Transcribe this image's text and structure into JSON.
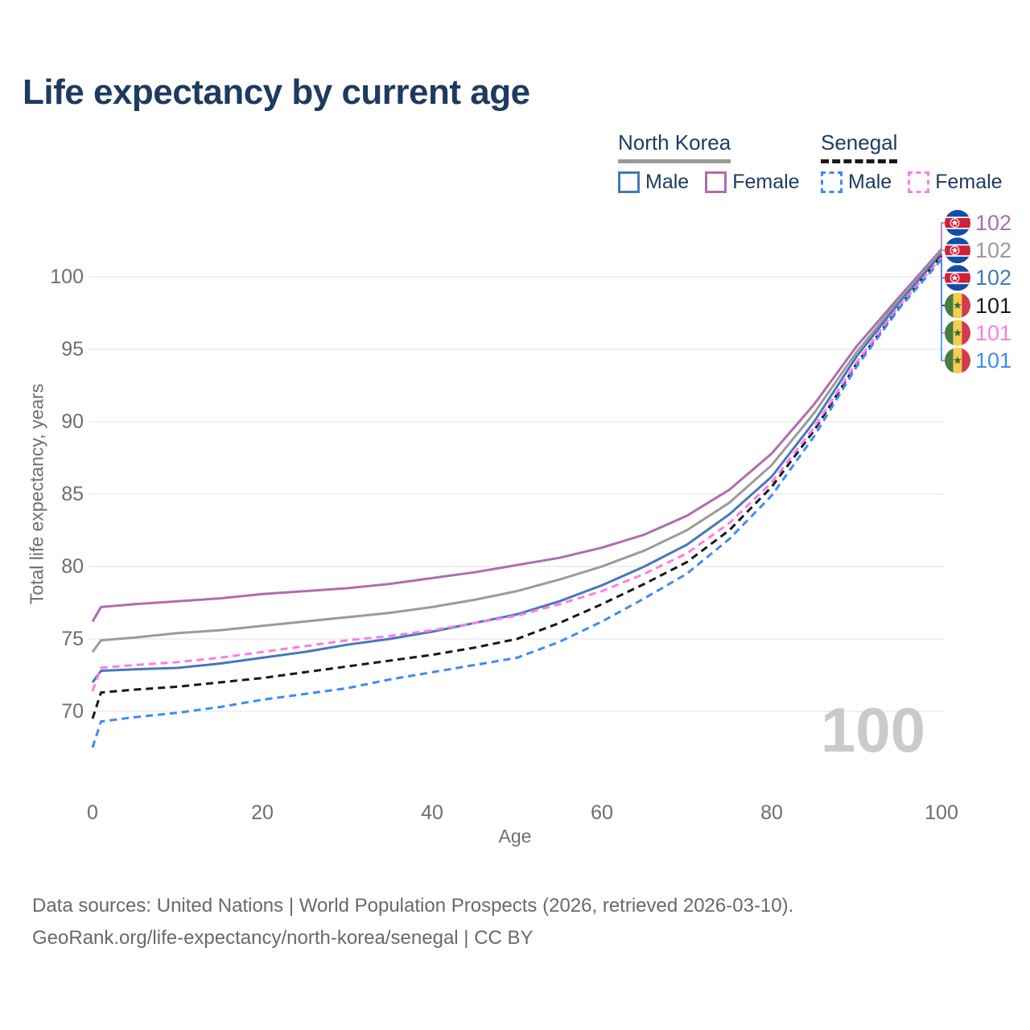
{
  "title": "Life expectancy by current age",
  "legend": {
    "groups": [
      {
        "country": "North Korea",
        "line_style": "solid",
        "items": [
          {
            "label": "Male",
            "color": "#4579ba"
          },
          {
            "label": "Female",
            "color": "#b06cad"
          }
        ]
      },
      {
        "country": "Senegal",
        "line_style": "dashed",
        "items": [
          {
            "label": "Male",
            "color": "#3e8bf4"
          },
          {
            "label": "Female",
            "color": "#fb7ce8"
          }
        ]
      }
    ]
  },
  "chart_data": {
    "type": "line",
    "title": "Life expectancy by current age",
    "xlabel": "Age",
    "ylabel": "Total life expectancy, years",
    "xlim": [
      0,
      100
    ],
    "ylim": [
      67,
      103
    ],
    "xticks": [
      0,
      20,
      40,
      60,
      80,
      100
    ],
    "yticks": [
      70,
      75,
      80,
      85,
      90,
      95,
      100
    ],
    "grid": "horizontal",
    "legend_position": "top-right",
    "x_ages": [
      0,
      1,
      5,
      10,
      15,
      20,
      25,
      30,
      35,
      40,
      45,
      50,
      55,
      60,
      65,
      70,
      75,
      80,
      85,
      90,
      95,
      100
    ],
    "series": [
      {
        "name": "North Korea Female",
        "country": "North Korea",
        "sex": "Female",
        "color": "#b06cad",
        "dashed": false,
        "values": [
          76.2,
          77.2,
          77.4,
          77.6,
          77.8,
          78.1,
          78.3,
          78.5,
          78.8,
          79.2,
          79.6,
          80.1,
          80.6,
          81.3,
          82.2,
          83.5,
          85.3,
          87.8,
          91.2,
          95.2,
          98.6,
          101.9
        ]
      },
      {
        "name": "North Korea Both sexes",
        "country": "North Korea",
        "sex": "Both",
        "color": "#9b9b9b",
        "dashed": false,
        "values": [
          74.1,
          74.9,
          75.1,
          75.4,
          75.6,
          75.9,
          76.2,
          76.5,
          76.8,
          77.2,
          77.7,
          78.3,
          79.1,
          80.0,
          81.1,
          82.5,
          84.4,
          87.0,
          90.6,
          94.8,
          98.4,
          101.75
        ]
      },
      {
        "name": "North Korea Male",
        "country": "North Korea",
        "sex": "Male",
        "color": "#4579ba",
        "dashed": false,
        "values": [
          72.0,
          72.8,
          72.9,
          73.0,
          73.3,
          73.7,
          74.1,
          74.6,
          75.0,
          75.5,
          76.1,
          76.7,
          77.6,
          78.7,
          80.0,
          81.5,
          83.6,
          86.2,
          90.0,
          94.5,
          98.2,
          101.6
        ]
      },
      {
        "name": "Senegal Both sexes",
        "country": "Senegal",
        "sex": "Both",
        "color": "#181818",
        "dashed": true,
        "values": [
          69.5,
          71.3,
          71.5,
          71.7,
          72.0,
          72.3,
          72.7,
          73.1,
          73.5,
          73.9,
          74.4,
          75.0,
          76.1,
          77.4,
          78.8,
          80.3,
          82.5,
          85.5,
          89.4,
          94.0,
          97.9,
          101.45
        ]
      },
      {
        "name": "Senegal Female",
        "country": "Senegal",
        "sex": "Female",
        "color": "#fb7ce8",
        "dashed": true,
        "values": [
          71.4,
          73.0,
          73.2,
          73.4,
          73.7,
          74.1,
          74.5,
          74.9,
          75.2,
          75.6,
          76.1,
          76.6,
          77.4,
          78.3,
          79.5,
          80.9,
          83.0,
          85.8,
          89.6,
          94.1,
          98.0,
          101.35
        ]
      },
      {
        "name": "Senegal Male",
        "country": "Senegal",
        "sex": "Male",
        "color": "#3e8bf4",
        "dashed": true,
        "values": [
          67.5,
          69.3,
          69.6,
          69.9,
          70.3,
          70.8,
          71.2,
          71.6,
          72.2,
          72.7,
          73.2,
          73.7,
          74.8,
          76.2,
          77.8,
          79.5,
          81.9,
          84.9,
          89.0,
          93.8,
          97.8,
          101.2
        ]
      }
    ]
  },
  "callouts": [
    {
      "flag": "north-korea",
      "value": "102",
      "color": "#b06cad"
    },
    {
      "flag": "north-korea",
      "value": "102",
      "color": "#9b9b9b"
    },
    {
      "flag": "north-korea",
      "value": "102",
      "color": "#4579ba"
    },
    {
      "flag": "senegal",
      "value": "101",
      "color": "#181818"
    },
    {
      "flag": "senegal",
      "value": "101",
      "color": "#fb7ce8"
    },
    {
      "flag": "senegal",
      "value": "101",
      "color": "#3e8bf4"
    }
  ],
  "watermark": "100",
  "footer": {
    "line1": "Data sources: United Nations | World Population Prospects (2026, retrieved 2026-03-10).",
    "line2": "GeoRank.org/life-expectancy/north-korea/senegal | CC BY"
  },
  "colors": {
    "title_text": "#1e3a5f",
    "axis_text": "#6e6e6e",
    "grid": "#ebebeb",
    "watermark": "#cacaca",
    "footer_text": "#696969"
  }
}
